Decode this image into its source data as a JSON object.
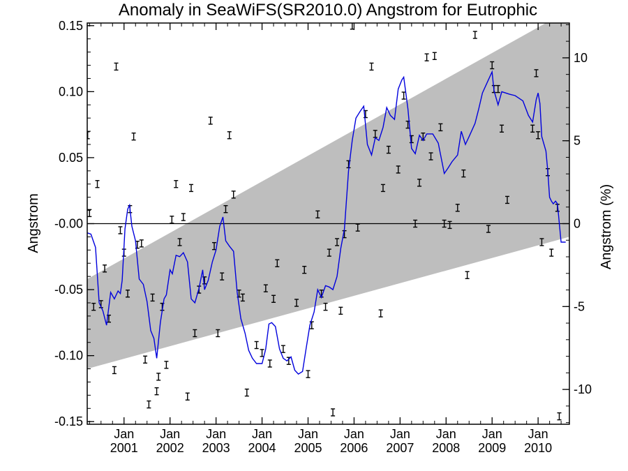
{
  "chart_data": {
    "type": "scatter",
    "title": "Anomaly in SeaWiFS(SR2010.0) Angstrom for Eutrophic",
    "ylabel": "Angstrom",
    "y2label": "Angstrom (%)",
    "xlim": [
      2000.2,
      2010.68
    ],
    "ylim": [
      -0.152,
      0.152
    ],
    "y2lim": [
      -12.1,
      12.1
    ],
    "x_ticks": [
      {
        "x": 2001.0,
        "month": "Jan",
        "year": "2001"
      },
      {
        "x": 2002.0,
        "month": "Jan",
        "year": "2002"
      },
      {
        "x": 2003.0,
        "month": "Jan",
        "year": "2003"
      },
      {
        "x": 2004.0,
        "month": "Jan",
        "year": "2004"
      },
      {
        "x": 2005.0,
        "month": "Jan",
        "year": "2005"
      },
      {
        "x": 2006.0,
        "month": "Jan",
        "year": "2006"
      },
      {
        "x": 2007.0,
        "month": "Jan",
        "year": "2007"
      },
      {
        "x": 2008.0,
        "month": "Jan",
        "year": "2008"
      },
      {
        "x": 2009.0,
        "month": "Jan",
        "year": "2009"
      },
      {
        "x": 2010.0,
        "month": "Jan",
        "year": "2010"
      }
    ],
    "y_ticks": [
      {
        "v": 0.15,
        "label": "0.15"
      },
      {
        "v": 0.1,
        "label": "0.10"
      },
      {
        "v": 0.05,
        "label": "0.05"
      },
      {
        "v": 0.0,
        "label": "-0.00"
      },
      {
        "v": -0.05,
        "label": "-0.05"
      },
      {
        "v": -0.1,
        "label": "-0.10"
      },
      {
        "v": -0.15,
        "label": "-0.15"
      }
    ],
    "y2_ticks": [
      {
        "v": 10,
        "label": "10"
      },
      {
        "v": 5,
        "label": "5"
      },
      {
        "v": 0,
        "label": "0"
      },
      {
        "v": -5,
        "label": "-5"
      },
      {
        "v": -10,
        "label": "-10"
      }
    ],
    "band": {
      "lower": [
        [
          2000.2,
          -0.11
        ],
        [
          2010.68,
          -0.01
        ]
      ],
      "upper": [
        [
          2000.2,
          -0.042
        ],
        [
          2010.68,
          0.162
        ]
      ],
      "color": "#bebebe"
    },
    "zero_line": 0.0,
    "points_color": "#000000",
    "line_color": "#0000dd",
    "points": [
      [
        2000.21,
        0.067
      ],
      [
        2000.25,
        0.008
      ],
      [
        2000.34,
        -0.063
      ],
      [
        2000.42,
        0.03
      ],
      [
        2000.5,
        -0.061
      ],
      [
        2000.58,
        -0.034
      ],
      [
        2000.67,
        -0.072
      ],
      [
        2000.79,
        -0.111
      ],
      [
        2000.83,
        0.119
      ],
      [
        2000.92,
        -0.005
      ],
      [
        2001.0,
        -0.022
      ],
      [
        2001.08,
        -0.053
      ],
      [
        2001.13,
        0.011
      ],
      [
        2001.21,
        0.066
      ],
      [
        2001.29,
        -0.016
      ],
      [
        2001.38,
        -0.015
      ],
      [
        2001.46,
        -0.103
      ],
      [
        2001.54,
        -0.137
      ],
      [
        2001.62,
        -0.056
      ],
      [
        2001.71,
        -0.127
      ],
      [
        2001.75,
        -0.116
      ],
      [
        2001.83,
        -0.063
      ],
      [
        2001.92,
        -0.107
      ],
      [
        2002.04,
        0.003
      ],
      [
        2002.13,
        0.03
      ],
      [
        2002.21,
        -0.014
      ],
      [
        2002.29,
        0.005
      ],
      [
        2002.38,
        -0.131
      ],
      [
        2002.46,
        0.027
      ],
      [
        2002.54,
        -0.083
      ],
      [
        2002.63,
        -0.05
      ],
      [
        2002.75,
        -0.043
      ],
      [
        2002.88,
        0.078
      ],
      [
        2002.96,
        -0.017
      ],
      [
        2003.04,
        -0.083
      ],
      [
        2003.13,
        -0.04
      ],
      [
        2003.21,
        0.011
      ],
      [
        2003.29,
        0.067
      ],
      [
        2003.38,
        0.022
      ],
      [
        2003.5,
        -0.053
      ],
      [
        2003.58,
        -0.056
      ],
      [
        2003.67,
        -0.128
      ],
      [
        2003.88,
        -0.092
      ],
      [
        2004.0,
        -0.098
      ],
      [
        2004.08,
        -0.049
      ],
      [
        2004.17,
        -0.106
      ],
      [
        2004.25,
        -0.057
      ],
      [
        2004.33,
        -0.03
      ],
      [
        2004.46,
        -0.095
      ],
      [
        2004.58,
        -0.104
      ],
      [
        2004.75,
        -0.06
      ],
      [
        2004.92,
        -0.035
      ],
      [
        2005.0,
        -0.114
      ],
      [
        2005.08,
        -0.077
      ],
      [
        2005.21,
        0.007
      ],
      [
        2005.29,
        -0.053
      ],
      [
        2005.38,
        -0.063
      ],
      [
        2005.46,
        -0.022
      ],
      [
        2005.54,
        -0.143
      ],
      [
        2005.63,
        -0.014
      ],
      [
        2005.71,
        -0.066
      ],
      [
        2005.79,
        -0.008
      ],
      [
        2005.88,
        0.045
      ],
      [
        2005.96,
        0.15
      ],
      [
        2006.08,
        -0.003
      ],
      [
        2006.25,
        0.083
      ],
      [
        2006.38,
        0.119
      ],
      [
        2006.46,
        0.068
      ],
      [
        2006.58,
        -0.068
      ],
      [
        2006.63,
        0.027
      ],
      [
        2006.75,
        0.056
      ],
      [
        2006.96,
        0.041
      ],
      [
        2007.08,
        0.097
      ],
      [
        2007.17,
        0.075
      ],
      [
        2007.25,
        0.064
      ],
      [
        2007.33,
        0.0
      ],
      [
        2007.42,
        0.031
      ],
      [
        2007.5,
        0.066
      ],
      [
        2007.58,
        0.126
      ],
      [
        2007.67,
        0.051
      ],
      [
        2007.75,
        0.127
      ],
      [
        2007.88,
        0.073
      ],
      [
        2007.96,
        0.0
      ],
      [
        2008.08,
        -0.001
      ],
      [
        2008.25,
        0.012
      ],
      [
        2008.38,
        0.038
      ],
      [
        2008.46,
        -0.039
      ],
      [
        2008.63,
        0.143
      ],
      [
        2008.92,
        -0.004
      ],
      [
        2009.0,
        0.12
      ],
      [
        2009.04,
        0.102
      ],
      [
        2009.13,
        0.102
      ],
      [
        2009.21,
        0.072
      ],
      [
        2009.33,
        0.018
      ],
      [
        2009.88,
        0.072
      ],
      [
        2009.96,
        0.114
      ],
      [
        2010.0,
        0.067
      ],
      [
        2010.08,
        -0.014
      ],
      [
        2010.21,
        0.039
      ],
      [
        2010.29,
        -0.022
      ],
      [
        2010.42,
        0.012
      ],
      [
        2010.46,
        -0.146
      ]
    ],
    "line": [
      [
        2000.2,
        -0.007
      ],
      [
        2000.28,
        -0.008
      ],
      [
        2000.38,
        -0.018
      ],
      [
        2000.46,
        -0.06
      ],
      [
        2000.54,
        -0.066
      ],
      [
        2000.62,
        -0.077
      ],
      [
        2000.71,
        -0.052
      ],
      [
        2000.79,
        -0.057
      ],
      [
        2000.87,
        -0.051
      ],
      [
        2000.92,
        -0.053
      ],
      [
        2000.96,
        -0.043
      ],
      [
        2001.02,
        -0.004
      ],
      [
        2001.08,
        0.011
      ],
      [
        2001.12,
        0.014
      ],
      [
        2001.17,
        -0.002
      ],
      [
        2001.25,
        -0.013
      ],
      [
        2001.33,
        -0.042
      ],
      [
        2001.42,
        -0.046
      ],
      [
        2001.5,
        -0.059
      ],
      [
        2001.58,
        -0.081
      ],
      [
        2001.65,
        -0.087
      ],
      [
        2001.71,
        -0.102
      ],
      [
        2001.79,
        -0.075
      ],
      [
        2001.87,
        -0.057
      ],
      [
        2001.92,
        -0.054
      ],
      [
        2002.0,
        -0.035
      ],
      [
        2002.05,
        -0.038
      ],
      [
        2002.13,
        -0.024
      ],
      [
        2002.21,
        -0.025
      ],
      [
        2002.29,
        -0.022
      ],
      [
        2002.38,
        -0.029
      ],
      [
        2002.46,
        -0.057
      ],
      [
        2002.54,
        -0.06
      ],
      [
        2002.63,
        -0.049
      ],
      [
        2002.71,
        -0.035
      ],
      [
        2002.75,
        -0.05
      ],
      [
        2002.83,
        -0.043
      ],
      [
        2002.92,
        -0.029
      ],
      [
        2003.0,
        -0.02
      ],
      [
        2003.08,
        -0.002
      ],
      [
        2003.15,
        0.005
      ],
      [
        2003.21,
        -0.013
      ],
      [
        2003.29,
        -0.017
      ],
      [
        2003.38,
        -0.021
      ],
      [
        2003.46,
        -0.052
      ],
      [
        2003.54,
        -0.072
      ],
      [
        2003.63,
        -0.083
      ],
      [
        2003.71,
        -0.096
      ],
      [
        2003.79,
        -0.102
      ],
      [
        2003.88,
        -0.106
      ],
      [
        2004.0,
        -0.106
      ],
      [
        2004.08,
        -0.095
      ],
      [
        2004.15,
        -0.076
      ],
      [
        2004.21,
        -0.075
      ],
      [
        2004.29,
        -0.078
      ],
      [
        2004.38,
        -0.095
      ],
      [
        2004.46,
        -0.102
      ],
      [
        2004.54,
        -0.104
      ],
      [
        2004.63,
        -0.101
      ],
      [
        2004.71,
        -0.111
      ],
      [
        2004.79,
        -0.114
      ],
      [
        2004.88,
        -0.112
      ],
      [
        2004.96,
        -0.094
      ],
      [
        2005.04,
        -0.077
      ],
      [
        2005.13,
        -0.067
      ],
      [
        2005.21,
        -0.05
      ],
      [
        2005.29,
        -0.056
      ],
      [
        2005.38,
        -0.047
      ],
      [
        2005.46,
        -0.048
      ],
      [
        2005.54,
        -0.05
      ],
      [
        2005.63,
        -0.04
      ],
      [
        2005.71,
        -0.019
      ],
      [
        2005.79,
        -0.004
      ],
      [
        2005.88,
        0.04
      ],
      [
        2005.96,
        0.063
      ],
      [
        2006.04,
        0.08
      ],
      [
        2006.13,
        0.085
      ],
      [
        2006.21,
        0.089
      ],
      [
        2006.29,
        0.06
      ],
      [
        2006.38,
        0.052
      ],
      [
        2006.46,
        0.065
      ],
      [
        2006.54,
        0.063
      ],
      [
        2006.63,
        0.073
      ],
      [
        2006.71,
        0.088
      ],
      [
        2006.79,
        0.082
      ],
      [
        2006.88,
        0.079
      ],
      [
        2006.96,
        0.102
      ],
      [
        2007.04,
        0.109
      ],
      [
        2007.08,
        0.111
      ],
      [
        2007.17,
        0.087
      ],
      [
        2007.25,
        0.057
      ],
      [
        2007.33,
        0.053
      ],
      [
        2007.42,
        0.067
      ],
      [
        2007.5,
        0.063
      ],
      [
        2007.58,
        0.068
      ],
      [
        2007.71,
        0.068
      ],
      [
        2007.83,
        0.061
      ],
      [
        2007.96,
        0.038
      ],
      [
        2008.04,
        0.042
      ],
      [
        2008.13,
        0.047
      ],
      [
        2008.25,
        0.052
      ],
      [
        2008.33,
        0.07
      ],
      [
        2008.42,
        0.06
      ],
      [
        2008.5,
        0.066
      ],
      [
        2008.63,
        0.076
      ],
      [
        2008.71,
        0.087
      ],
      [
        2008.79,
        0.099
      ],
      [
        2008.92,
        0.109
      ],
      [
        2009.0,
        0.115
      ],
      [
        2009.04,
        0.101
      ],
      [
        2009.13,
        0.09
      ],
      [
        2009.21,
        0.1
      ],
      [
        2009.38,
        0.098
      ],
      [
        2009.5,
        0.097
      ],
      [
        2009.67,
        0.093
      ],
      [
        2009.79,
        0.082
      ],
      [
        2009.88,
        0.077
      ],
      [
        2009.96,
        0.094
      ],
      [
        2010.0,
        0.099
      ],
      [
        2010.04,
        0.091
      ],
      [
        2010.08,
        0.066
      ],
      [
        2010.17,
        0.055
      ],
      [
        2010.21,
        0.04
      ],
      [
        2010.25,
        0.02
      ],
      [
        2010.29,
        0.017
      ],
      [
        2010.33,
        0.015
      ],
      [
        2010.38,
        0.017
      ],
      [
        2010.42,
        0.015
      ],
      [
        2010.5,
        -0.014
      ],
      [
        2010.6,
        -0.014
      ]
    ]
  }
}
